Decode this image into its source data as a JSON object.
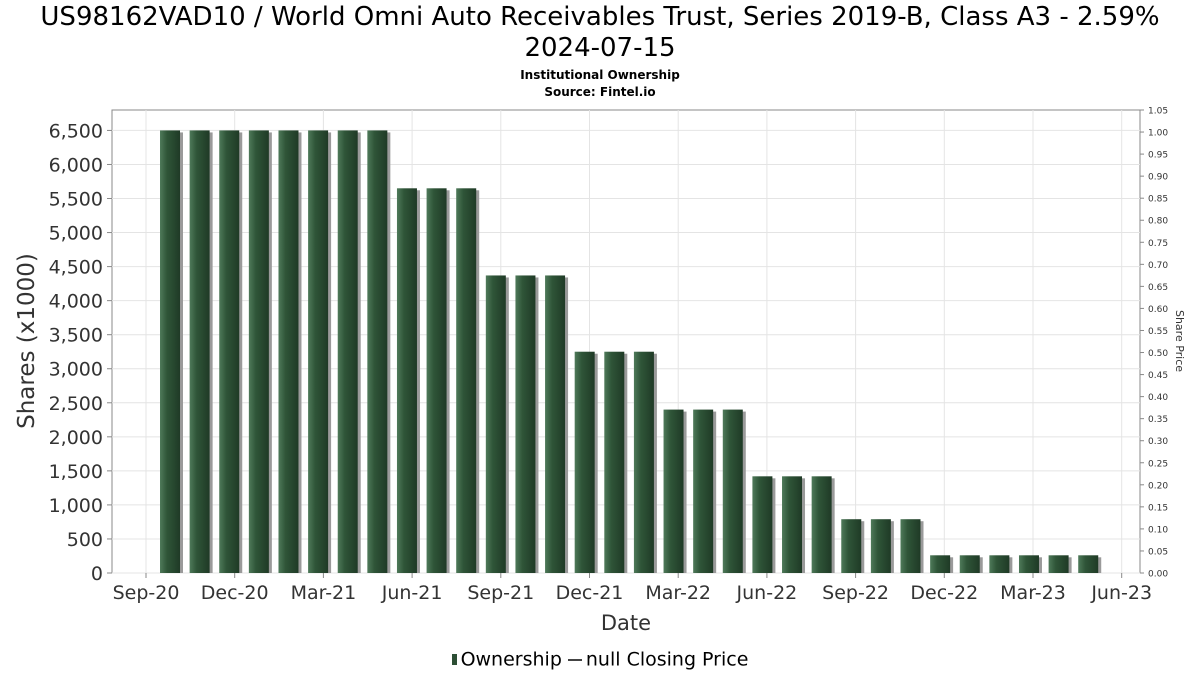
{
  "chart_data": {
    "type": "bar",
    "title": "US98162VAD10 / World Omni Auto Receivables Trust, Series 2019-B, Class A3 - 2.59% 2024-07-15",
    "subtitle": "Institutional Ownership",
    "source": "Source: Fintel.io",
    "xlabel": "Date",
    "ylabel": "Shares (x1000)",
    "y2label": "Share Price",
    "ylim": [
      0,
      6800
    ],
    "y2lim": [
      0,
      1.05
    ],
    "yticks": [
      0,
      500,
      1000,
      1500,
      2000,
      2500,
      3000,
      3500,
      4000,
      4500,
      5000,
      5500,
      6000,
      6500
    ],
    "yticklabels": [
      "0",
      "500",
      "1,000",
      "1,500",
      "2,000",
      "2,500",
      "3,000",
      "3,500",
      "4,000",
      "4,500",
      "5,000",
      "5,500",
      "6,000",
      "6,500"
    ],
    "y2ticklabels": [
      "0.00",
      "0.05",
      "0.10",
      "0.15",
      "0.20",
      "0.25",
      "0.30",
      "0.35",
      "0.40",
      "0.45",
      "0.50",
      "0.55",
      "0.60",
      "0.65",
      "0.70",
      "0.75",
      "0.80",
      "0.85",
      "0.90",
      "0.95",
      "1.00",
      "1.05"
    ],
    "xticklabels": [
      "Sep-20",
      "Dec-20",
      "Mar-21",
      "Jun-21",
      "Sep-21",
      "Dec-21",
      "Mar-22",
      "Jun-22",
      "Sep-22",
      "Dec-22",
      "Mar-23",
      "Jun-23"
    ],
    "grid": true,
    "legend_position": "bottom",
    "series": [
      {
        "name": "Ownership",
        "values": [
          6500,
          6500,
          6500,
          6500,
          6500,
          6500,
          6500,
          6500,
          5650,
          5650,
          5650,
          4370,
          4370,
          4370,
          3250,
          3250,
          3250,
          2400,
          2400,
          2400,
          1420,
          1420,
          1420,
          790,
          790,
          790,
          260,
          260,
          260,
          260,
          260,
          260
        ]
      }
    ],
    "legend": [
      "Ownership",
      "null Closing Price"
    ]
  },
  "colors": {
    "bar": "#2d4f35",
    "bar_shadow": "#9a9a9a",
    "grid": "#e4e4e4",
    "axis": "#888888"
  }
}
